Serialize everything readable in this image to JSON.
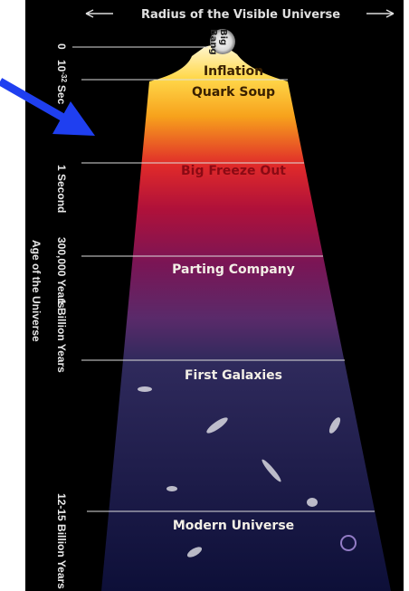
{
  "header": {
    "title": "Radius of the Visible Universe"
  },
  "origin": {
    "line1": "Big",
    "line2": "Bang"
  },
  "stages": [
    {
      "label": "Inflation"
    },
    {
      "label": "Quark Soup"
    },
    {
      "label": "Big Freeze Out"
    },
    {
      "label": "Parting Company"
    },
    {
      "label": "First Galaxies"
    },
    {
      "label": "Modern Universe"
    }
  ],
  "time_axis": {
    "label": "Age of the Universe",
    "ticks": [
      {
        "label": "0"
      },
      {
        "base": "10",
        "exponent": "-32",
        "unit": "Sec"
      },
      {
        "label": "1 Second"
      },
      {
        "label": "300,000 Years"
      },
      {
        "label": "1 Billion Years"
      },
      {
        "label": "12-15 Billion Years"
      }
    ]
  }
}
